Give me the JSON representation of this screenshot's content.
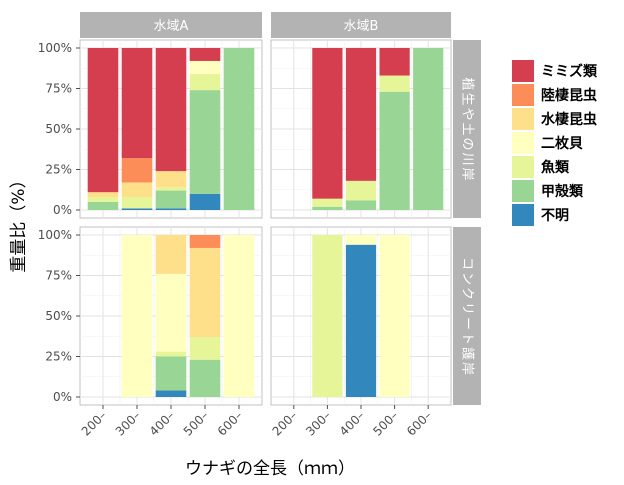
{
  "chart_data": {
    "type": "bar",
    "stacked": true,
    "xlabel": "ウナギの全長（ｍｍ）",
    "ylabel": "重量比（%）",
    "categories": [
      "200–",
      "300–",
      "400–",
      "500–",
      "600–"
    ],
    "y_ticks": [
      "0%",
      "25%",
      "50%",
      "75%",
      "100%"
    ],
    "ylim": [
      0,
      100
    ],
    "columns": [
      "水域A",
      "水域B"
    ],
    "rows": [
      "植生や土の川岸",
      "コンクリート護岸"
    ],
    "legend": {
      "position": "right",
      "items": [
        {
          "name": "ミミズ類",
          "color": "#D53E4F"
        },
        {
          "name": "陸棲昆虫",
          "color": "#FC8D59"
        },
        {
          "name": "水棲昆虫",
          "color": "#FEE08B"
        },
        {
          "name": "二枚貝",
          "color": "#FFFFBF"
        },
        {
          "name": "魚類",
          "color": "#E6F598"
        },
        {
          "name": "甲殻類",
          "color": "#99D594"
        },
        {
          "name": "不明",
          "color": "#3288BD"
        }
      ]
    },
    "stack_order_bottom_to_top": [
      "不明",
      "甲殻類",
      "魚類",
      "二枚貝",
      "水棲昆虫",
      "陸棲昆虫",
      "ミミズ類"
    ],
    "panels": [
      {
        "column": "水域A",
        "row": "植生や土の川岸",
        "bars": [
          {
            "category": "200–",
            "segments": {
              "不明": 0,
              "甲殻類": 5,
              "魚類": 3,
              "二枚貝": 0,
              "水棲昆虫": 3,
              "陸棲昆虫": 0,
              "ミミズ類": 89
            }
          },
          {
            "category": "300–",
            "segments": {
              "不明": 1,
              "甲殻類": 0,
              "魚類": 7,
              "二枚貝": 0,
              "水棲昆虫": 9,
              "陸棲昆虫": 15,
              "ミミズ類": 68
            }
          },
          {
            "category": "400–",
            "segments": {
              "不明": 1,
              "甲殻類": 11,
              "魚類": 2,
              "二枚貝": 0,
              "水棲昆虫": 10,
              "陸棲昆虫": 0,
              "ミミズ類": 76
            }
          },
          {
            "category": "500–",
            "segments": {
              "不明": 10,
              "甲殻類": 64,
              "魚類": 10,
              "二枚貝": 8,
              "水棲昆虫": 0,
              "陸棲昆虫": 0,
              "ミミズ類": 8
            }
          },
          {
            "category": "600–",
            "segments": {
              "不明": 0,
              "甲殻類": 100,
              "魚類": 0,
              "二枚貝": 0,
              "水棲昆虫": 0,
              "陸棲昆虫": 0,
              "ミミズ類": 0
            }
          }
        ]
      },
      {
        "column": "水域B",
        "row": "植生や土の川岸",
        "bars": [
          {
            "category": "300–",
            "segments": {
              "不明": 0,
              "甲殻類": 2,
              "魚類": 5,
              "二枚貝": 0,
              "水棲昆虫": 0,
              "陸棲昆虫": 0,
              "ミミズ類": 93
            }
          },
          {
            "category": "400–",
            "segments": {
              "不明": 0,
              "甲殻類": 6,
              "魚類": 12,
              "二枚貝": 0,
              "水棲昆虫": 0,
              "陸棲昆虫": 0,
              "ミミズ類": 82
            }
          },
          {
            "category": "500–",
            "segments": {
              "不明": 0,
              "甲殻類": 73,
              "魚類": 10,
              "二枚貝": 0,
              "水棲昆虫": 0,
              "陸棲昆虫": 0,
              "ミミズ類": 17
            }
          },
          {
            "category": "600–",
            "segments": {
              "不明": 0,
              "甲殻類": 100,
              "魚類": 0,
              "二枚貝": 0,
              "水棲昆虫": 0,
              "陸棲昆虫": 0,
              "ミミズ類": 0
            }
          }
        ]
      },
      {
        "column": "水域A",
        "row": "コンクリート護岸",
        "bars": [
          {
            "category": "300–",
            "segments": {
              "不明": 0,
              "甲殻類": 0,
              "魚類": 0,
              "二枚貝": 100,
              "水棲昆虫": 0,
              "陸棲昆虫": 0,
              "ミミズ類": 0
            }
          },
          {
            "category": "400–",
            "segments": {
              "不明": 4,
              "甲殻類": 21,
              "魚類": 3,
              "二枚貝": 48,
              "水棲昆虫": 24,
              "陸棲昆虫": 0,
              "ミミズ類": 0
            }
          },
          {
            "category": "500–",
            "segments": {
              "不明": 0,
              "甲殻類": 23,
              "魚類": 14,
              "二枚貝": 0,
              "水棲昆虫": 55,
              "陸棲昆虫": 8,
              "ミミズ類": 0
            }
          },
          {
            "category": "600–",
            "segments": {
              "不明": 0,
              "甲殻類": 0,
              "魚類": 0,
              "二枚貝": 100,
              "水棲昆虫": 0,
              "陸棲昆虫": 0,
              "ミミズ類": 0
            }
          }
        ]
      },
      {
        "column": "水域B",
        "row": "コンクリート護岸",
        "bars": [
          {
            "category": "300–",
            "segments": {
              "不明": 0,
              "甲殻類": 0,
              "魚類": 100,
              "二枚貝": 0,
              "水棲昆虫": 0,
              "陸棲昆虫": 0,
              "ミミズ類": 0
            }
          },
          {
            "category": "400–",
            "segments": {
              "不明": 94,
              "甲殻類": 0,
              "魚類": 0,
              "二枚貝": 6,
              "水棲昆虫": 0,
              "陸棲昆虫": 0,
              "ミミズ類": 0
            }
          },
          {
            "category": "500–",
            "segments": {
              "不明": 0,
              "甲殻類": 0,
              "魚類": 0,
              "二枚貝": 100,
              "水棲昆虫": 0,
              "陸棲昆虫": 0,
              "ミミズ類": 0
            }
          }
        ]
      }
    ]
  }
}
